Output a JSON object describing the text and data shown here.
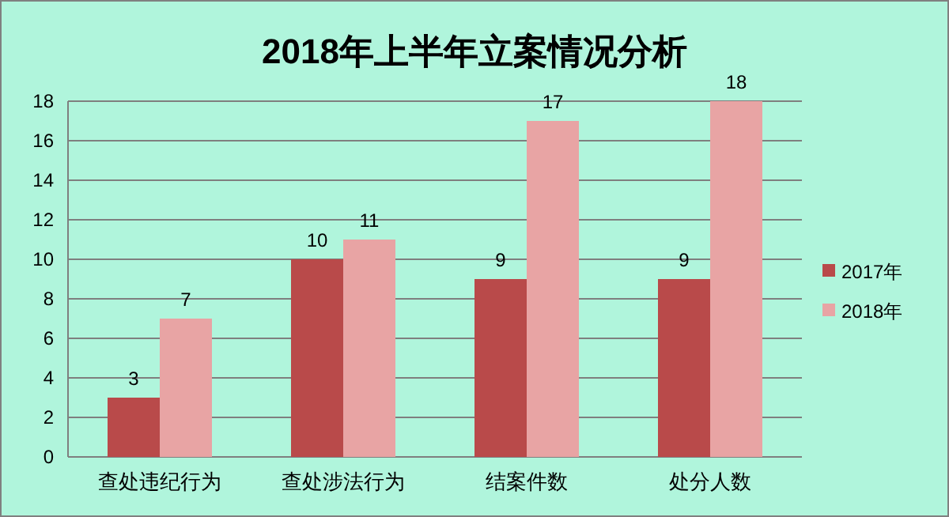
{
  "chart_data": {
    "type": "bar",
    "title": "2018年上半年立案情况分析",
    "categories": [
      "查处违纪行为",
      "查处涉法行为",
      "结案件数",
      "处分人数"
    ],
    "series": [
      {
        "name": "2017年",
        "color": "#b94a4a",
        "values": [
          3,
          10,
          9,
          9
        ]
      },
      {
        "name": "2018年",
        "color": "#e8a4a4",
        "values": [
          7,
          11,
          17,
          18
        ]
      }
    ],
    "ylim": [
      0,
      18
    ],
    "yticks": [
      0,
      2,
      4,
      6,
      8,
      10,
      12,
      14,
      16,
      18
    ],
    "grid": "y",
    "legend": "right",
    "data_labels": true
  }
}
